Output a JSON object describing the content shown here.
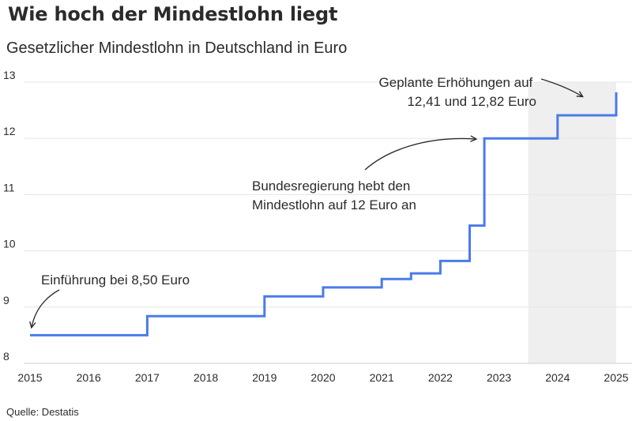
{
  "header": {
    "title": "Wie hoch der Mindestlohn liegt",
    "subtitle": "Gesetzlicher Mindestlohn in Deutschland in Euro"
  },
  "footer": {
    "source": "Quelle: Destatis"
  },
  "colors": {
    "line": "#4a7bea",
    "grid": "#e5e5e5",
    "shade": "#efefef",
    "text": "#2b2b2b"
  },
  "chart_data": {
    "type": "line",
    "step": true,
    "xlim": [
      2015,
      2025
    ],
    "ylim": [
      8,
      13
    ],
    "x_ticks": [
      "2015",
      "2016",
      "2017",
      "2018",
      "2019",
      "2020",
      "2021",
      "2022",
      "2023",
      "2024",
      "2025"
    ],
    "y_ticks": [
      "8",
      "9",
      "10",
      "11",
      "12",
      "13"
    ],
    "grid": "horizontal",
    "shaded_range": [
      "2023-07",
      "2025-01"
    ],
    "series": [
      {
        "points": [
          {
            "date": "2015-01",
            "value": 8.5
          },
          {
            "date": "2017-01",
            "value": 8.84
          },
          {
            "date": "2019-01",
            "value": 9.19
          },
          {
            "date": "2020-01",
            "value": 9.35
          },
          {
            "date": "2021-01",
            "value": 9.5
          },
          {
            "date": "2021-07",
            "value": 9.6
          },
          {
            "date": "2022-01",
            "value": 9.82
          },
          {
            "date": "2022-07",
            "value": 10.45
          },
          {
            "date": "2022-10",
            "value": 12.0
          },
          {
            "date": "2024-01",
            "value": 12.41
          },
          {
            "date": "2025-01",
            "value": 12.82
          }
        ]
      }
    ],
    "annotations": [
      {
        "lines": [
          "Einführung bei 8,50 Euro"
        ]
      },
      {
        "lines": [
          "Bundesregierung hebt den",
          "Mindestlohn auf 12 Euro an"
        ]
      },
      {
        "lines": [
          "Geplante Erhöhungen auf",
          "12,41 und 12,82 Euro"
        ]
      }
    ]
  }
}
